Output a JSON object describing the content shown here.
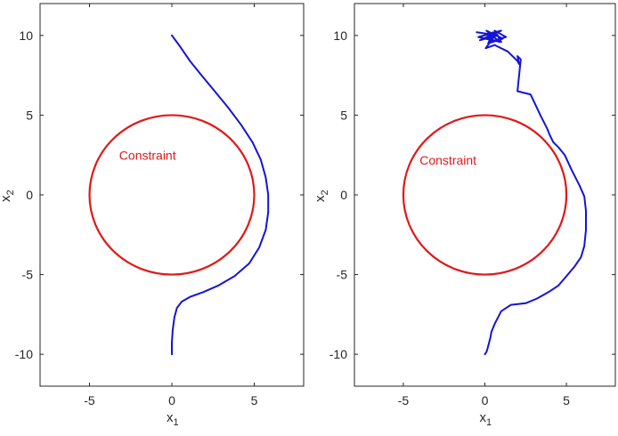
{
  "colors": {
    "constraint": "#e01919",
    "trajectory": "#1414d6",
    "axes": "#262626"
  },
  "chart_data": [
    {
      "type": "line",
      "xlabel": "x",
      "xlabel_sub": "1",
      "ylabel": "x",
      "ylabel_sub": "2",
      "xlim": [
        -8,
        8
      ],
      "ylim": [
        -12,
        12
      ],
      "xticks": [
        -5,
        0,
        5
      ],
      "yticks": [
        -10,
        -5,
        0,
        5,
        10
      ],
      "xtick_labels": [
        "-5",
        "0",
        "5"
      ],
      "ytick_labels": [
        "-10",
        "-5",
        "0",
        "5",
        "10"
      ],
      "grid": false,
      "constraint": {
        "center": [
          0,
          0
        ],
        "radius": 5
      },
      "annotation": {
        "text": "Constraint",
        "x": -3.2,
        "y": 2.2
      },
      "trajectory": {
        "x": [
          0.0,
          0.5,
          1.1,
          1.8,
          2.6,
          3.4,
          4.2,
          4.9,
          5.4,
          5.7,
          5.85,
          5.85,
          5.7,
          5.3,
          4.7,
          3.8,
          2.8,
          1.9,
          1.1,
          0.6,
          0.3,
          0.15,
          0.05,
          0.0,
          0.0
        ],
        "y": [
          10.0,
          9.3,
          8.4,
          7.5,
          6.5,
          5.5,
          4.4,
          3.3,
          2.2,
          1.1,
          0.0,
          -1.1,
          -2.2,
          -3.3,
          -4.3,
          -5.1,
          -5.7,
          -6.1,
          -6.4,
          -6.7,
          -7.1,
          -7.7,
          -8.5,
          -9.3,
          -10.0
        ]
      }
    },
    {
      "type": "line",
      "xlabel": "x",
      "xlabel_sub": "1",
      "ylabel": "x",
      "ylabel_sub": "2",
      "xlim": [
        -8,
        8
      ],
      "ylim": [
        -12,
        12
      ],
      "xticks": [
        -5,
        0,
        5
      ],
      "yticks": [
        -10,
        -5,
        0,
        5,
        10
      ],
      "xtick_labels": [
        "-5",
        "0",
        "5"
      ],
      "ytick_labels": [
        "-10",
        "-5",
        "0",
        "5",
        "10"
      ],
      "grid": false,
      "constraint": {
        "center": [
          0,
          0
        ],
        "radius": 5
      },
      "annotation": {
        "text": "Constraint",
        "x": -4.0,
        "y": 1.9
      },
      "trajectory": {
        "x": [
          -0.5,
          0.8,
          -0.3,
          1.0,
          -0.4,
          0.9,
          0.1,
          1.1,
          0.2,
          0.5,
          0.0,
          1.0,
          0.6,
          1.3,
          0.3,
          0.7,
          0.05,
          0.6,
          1.4,
          2.0,
          2.1,
          2.0,
          2.2,
          2.0,
          2.8,
          3.4,
          3.8,
          4.0,
          4.2,
          4.5,
          4.9,
          5.3,
          5.8,
          6.1,
          6.2,
          6.2,
          6.1,
          5.9,
          5.5,
          5.0,
          4.5,
          3.9,
          3.2,
          2.5,
          1.6,
          1.0,
          0.6,
          0.4,
          0.35,
          0.25,
          0.15,
          0.1,
          0.0
        ],
        "y": [
          10.2,
          10.0,
          9.7,
          10.3,
          9.9,
          9.6,
          10.3,
          9.8,
          9.5,
          10.2,
          9.8,
          9.6,
          10.3,
          9.9,
          9.6,
          10.1,
          9.2,
          9.4,
          9.0,
          8.4,
          8.2,
          8.7,
          8.5,
          6.5,
          6.3,
          5.0,
          4.2,
          3.7,
          3.3,
          3.0,
          2.5,
          1.6,
          0.6,
          -0.1,
          -1.0,
          -2.2,
          -3.2,
          -3.9,
          -4.5,
          -5.1,
          -5.7,
          -6.1,
          -6.5,
          -6.8,
          -6.9,
          -7.3,
          -8.1,
          -8.6,
          -8.9,
          -9.3,
          -9.7,
          -9.85,
          -10.0
        ]
      }
    }
  ]
}
